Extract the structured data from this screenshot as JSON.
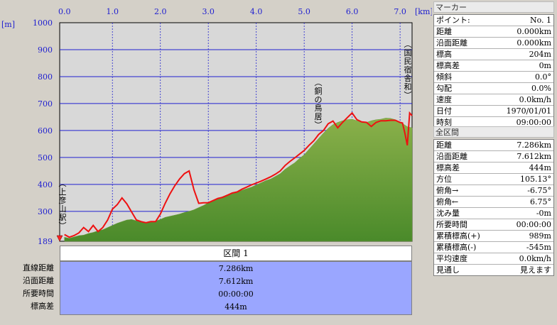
{
  "chart": {
    "y_unit": "[m]",
    "x_unit": "[km]",
    "y_ticks": [
      "1000",
      "900",
      "800",
      "700",
      "600",
      "500",
      "400",
      "300",
      "189"
    ],
    "x_ticks": [
      "0.0",
      "1.0",
      "2.0",
      "3.0",
      "4.0",
      "5.0",
      "6.0",
      "7.0"
    ],
    "annotations": [
      {
        "text": "(上彦山駅)"
      },
      {
        "text": "(銅の鳥居)"
      },
      {
        "text": "(国民宿舎和)"
      }
    ]
  },
  "chart_data": {
    "type": "area",
    "xlabel": "[km]",
    "ylabel": "[m]",
    "xlim": [
      -0.1,
      7.25
    ],
    "ylim": [
      189,
      1000
    ],
    "grid": true,
    "series": [
      {
        "values_note": "",
        "x": [
          0.0,
          0.1,
          0.2,
          0.3,
          0.4,
          0.5,
          0.6,
          0.7,
          0.8,
          0.9,
          1.0,
          1.1,
          1.2,
          1.3,
          1.4,
          1.5,
          1.6,
          1.7,
          1.8,
          1.9,
          2.0,
          2.1,
          2.2,
          2.3,
          2.4,
          2.5,
          2.6,
          2.7,
          2.8,
          2.9,
          3.0,
          3.1,
          3.2,
          3.3,
          3.4,
          3.5,
          3.6,
          3.7,
          3.8,
          3.9,
          4.0,
          4.1,
          4.2,
          4.3,
          4.4,
          4.5,
          4.6,
          4.7,
          4.8,
          4.9,
          5.0,
          5.1,
          5.2,
          5.3,
          5.4,
          5.5,
          5.6,
          5.7,
          5.8,
          5.9,
          6.0,
          6.1,
          6.2,
          6.3,
          6.4,
          6.5,
          6.6,
          6.7,
          6.8,
          6.9,
          7.0,
          7.05,
          7.1,
          7.15,
          7.2,
          7.25
        ],
        "y": [
          204,
          200,
          205,
          210,
          212,
          218,
          222,
          228,
          232,
          240,
          248,
          256,
          262,
          268,
          270,
          265,
          262,
          258,
          260,
          264,
          270,
          278,
          282,
          286,
          290,
          296,
          300,
          306,
          314,
          322,
          332,
          340,
          348,
          355,
          362,
          368,
          372,
          378,
          384,
          390,
          398,
          406,
          414,
          420,
          430,
          440,
          456,
          468,
          480,
          496,
          510,
          530,
          550,
          570,
          590,
          608,
          622,
          630,
          636,
          640,
          642,
          636,
          630,
          630,
          636,
          640,
          642,
          646,
          645,
          640,
          632,
          626,
          620,
          614,
          612,
          610
        ],
        "name": ""
      },
      {
        "name": "",
        "x": [
          0.0,
          0.1,
          0.2,
          0.3,
          0.4,
          0.5,
          0.6,
          0.7,
          0.8,
          0.9,
          1.0,
          1.1,
          1.2,
          1.3,
          1.4,
          1.5,
          1.6,
          1.7,
          1.8,
          1.9,
          2.0,
          2.1,
          2.2,
          2.3,
          2.4,
          2.5,
          2.6,
          2.7,
          2.8,
          2.9,
          3.0,
          3.1,
          3.2,
          3.3,
          3.4,
          3.5,
          3.6,
          3.7,
          3.8,
          3.9,
          4.0,
          4.1,
          4.2,
          4.3,
          4.4,
          4.5,
          4.6,
          4.7,
          4.8,
          4.9,
          5.0,
          5.1,
          5.2,
          5.3,
          5.4,
          5.5,
          5.6,
          5.7,
          5.8,
          5.9,
          6.0,
          6.1,
          6.2,
          6.3,
          6.4,
          6.5,
          6.6,
          6.7,
          6.8,
          6.9,
          7.0,
          7.05,
          7.1,
          7.15,
          7.2,
          7.25
        ],
        "y": [
          214,
          204,
          210,
          220,
          240,
          225,
          248,
          225,
          240,
          268,
          308,
          325,
          350,
          328,
          298,
          268,
          262,
          258,
          262,
          262,
          290,
          330,
          365,
          395,
          420,
          440,
          450,
          380,
          330,
          332,
          332,
          340,
          348,
          352,
          360,
          368,
          372,
          382,
          390,
          398,
          405,
          412,
          420,
          428,
          438,
          450,
          470,
          485,
          498,
          512,
          526,
          545,
          562,
          585,
          600,
          625,
          635,
          610,
          630,
          648,
          665,
          640,
          632,
          630,
          615,
          630,
          636,
          636,
          638,
          638,
          630,
          628,
          590,
          545,
          665,
          655
        ]
      }
    ]
  },
  "section_table": {
    "header": "区間 1",
    "rows": [
      {
        "label": "直線距離",
        "value": "7.286km"
      },
      {
        "label": "沿面距離",
        "value": "7.612km"
      },
      {
        "label": "所要時間",
        "value": "00:00:00"
      },
      {
        "label": "標高差",
        "value": "444m"
      }
    ]
  },
  "marker_panel": {
    "title": "マーカー",
    "rows": [
      {
        "label": "ポイント:",
        "value": "No. 1"
      },
      {
        "label": "距離",
        "value": "0.000km"
      },
      {
        "label": "沿面距離",
        "value": "0.000km"
      },
      {
        "label": "標高",
        "value": "204m"
      },
      {
        "label": "標高差",
        "value": "0m"
      },
      {
        "label": "傾斜",
        "value": "0.0°"
      },
      {
        "label": "勾配",
        "value": "0.0%"
      },
      {
        "label": "速度",
        "value": "0.0km/h"
      },
      {
        "label": "日付",
        "value": "1970/01/01"
      },
      {
        "label": "時刻",
        "value": "09:00:00"
      }
    ]
  },
  "all_section_panel": {
    "title": "全区間",
    "rows": [
      {
        "label": "距離",
        "value": "7.286km"
      },
      {
        "label": "沿面距離",
        "value": "7.612km"
      },
      {
        "label": "標高差",
        "value": "444m"
      },
      {
        "label": "方位",
        "value": "105.13°"
      },
      {
        "label": "俯角→",
        "value": "-6.75°"
      },
      {
        "label": "俯角←",
        "value": "6.75°"
      },
      {
        "label": "沈み量",
        "value": "-0m"
      },
      {
        "label": "所要時間",
        "value": "00:00:00"
      },
      {
        "label": "累積標高(+)",
        "value": "989m"
      },
      {
        "label": "累積標高(-)",
        "value": "-545m"
      },
      {
        "label": "平均速度",
        "value": "0.0km/h"
      },
      {
        "label": "見通し",
        "value": "見えます"
      }
    ]
  },
  "colors": {
    "plot_bg": "#d8d8d8",
    "grid": "#2020d0",
    "terrain_top": "#8ab04a",
    "terrain_bottom": "#4a8a2a",
    "route": "#ee1111",
    "table_bg": "#9aa6ff"
  }
}
